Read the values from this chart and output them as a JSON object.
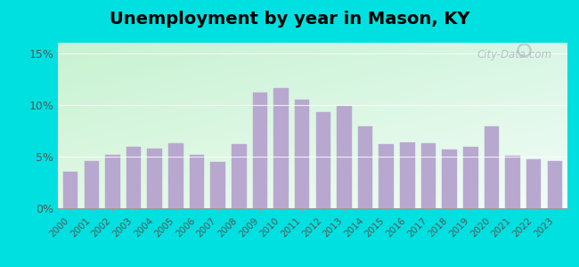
{
  "title": "Unemployment by year in Mason, KY",
  "years": [
    2000,
    2001,
    2002,
    2003,
    2004,
    2005,
    2006,
    2007,
    2008,
    2009,
    2010,
    2011,
    2012,
    2013,
    2014,
    2015,
    2016,
    2017,
    2018,
    2019,
    2020,
    2021,
    2022,
    2023
  ],
  "values": [
    3.5,
    4.6,
    5.2,
    5.9,
    5.8,
    6.3,
    5.2,
    4.5,
    6.2,
    11.2,
    11.6,
    10.5,
    9.3,
    9.9,
    7.9,
    6.2,
    6.4,
    6.3,
    5.7,
    5.9,
    7.9,
    5.1,
    4.7,
    4.6
  ],
  "bar_color": "#b8a8d0",
  "outer_background": "#00e0e0",
  "ylim": [
    0,
    16
  ],
  "yticks": [
    0,
    5,
    10,
    15
  ],
  "ytick_labels": [
    "0%",
    "5%",
    "10%",
    "15%"
  ],
  "title_fontsize": 14,
  "watermark_text": "City-Data.com"
}
